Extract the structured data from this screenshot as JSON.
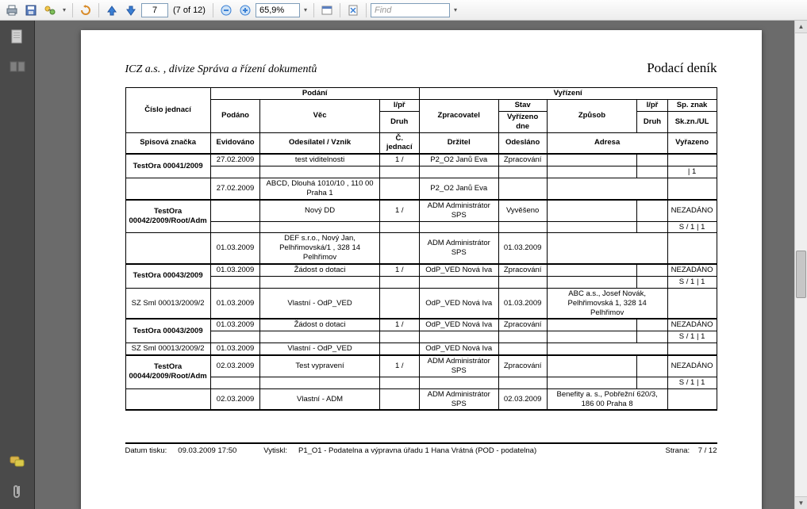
{
  "toolbar": {
    "page_input": "7",
    "page_count": "(7 of 12)",
    "zoom": "65,9%",
    "find_placeholder": "Find"
  },
  "doc": {
    "header_left": "ICZ a.s. , divize Správa a řízení dokumentů",
    "header_right": "Podací deník",
    "group_podani": "Podání",
    "group_vyrizeni": "Vyřízení",
    "h1": {
      "cj": "Číslo jednací",
      "pod": "Podáno",
      "vec": "Věc",
      "lpr": "l/př",
      "zpr": "Zpracovatel",
      "stav": "Stav",
      "zpusob": "Způsob",
      "lpr2": "l/př",
      "sp": "Sp. znak"
    },
    "h2": {
      "druh": "Druh",
      "vyrdne": "Vyřízeno dne",
      "druh2": "Druh",
      "skzn": "Sk.zn./UL"
    },
    "h3": {
      "spisz": "Spisová značka",
      "evid": "Evidováno",
      "odes": "Odesílatel / Vznik",
      "cjed": "Č. jednací",
      "drz": "Držitel",
      "odesl": "Odesláno",
      "adresa": "Adresa",
      "vyraz": "Vyřazeno"
    },
    "rows": [
      {
        "r1": [
          "TestOra 00041/2009",
          "27.02.2009",
          "test viditelnosti",
          "1 /",
          "P2_O2 Janů Eva",
          "Zpracování",
          "",
          "",
          ""
        ],
        "r2": [
          "",
          "",
          "",
          "",
          "",
          "",
          "",
          "",
          "| 1"
        ],
        "r3": [
          "",
          "27.02.2009",
          "ABCD, Dlouhá 1010/10 , 110 00 Praha 1",
          "",
          "P2_O2 Janů Eva",
          "",
          "",
          "",
          ""
        ]
      },
      {
        "r1": [
          "TestOra 00042/2009/Root/Adm",
          "",
          "Nový DD",
          "1 /",
          "ADM Administrátor SPS",
          "Vyvěšeno",
          "",
          "",
          "NEZADÁNO"
        ],
        "r2": [
          "",
          "",
          "",
          "",
          "",
          "",
          "",
          "",
          "S / 1 | 1"
        ],
        "r3": [
          "",
          "01.03.2009",
          "DEF s.r.o., Nový Jan, Pelhřimovská/1 , 328 14 Pelhřimov",
          "",
          "ADM Administrátor SPS",
          "01.03.2009",
          "",
          "",
          ""
        ]
      },
      {
        "r1": [
          "TestOra 00043/2009",
          "01.03.2009",
          "Žádost o dotaci",
          "1 /",
          "OdP_VED Nová Iva",
          "Zpracování",
          "",
          "",
          "NEZADÁNO"
        ],
        "r2": [
          "",
          "",
          "",
          "",
          "",
          "",
          "",
          "",
          "S / 1 | 1"
        ],
        "r3": [
          "SZ Sml 00013/2009/2",
          "01.03.2009",
          "Vlastní - OdP_VED",
          "",
          "OdP_VED Nová Iva",
          "01.03.2009",
          "ABC a.s., Josef Novák, Pelhřimovská 1, 328 14 Pelhřimov",
          "",
          ""
        ]
      },
      {
        "r1": [
          "TestOra 00043/2009",
          "01.03.2009",
          "Žádost o dotaci",
          "1 /",
          "OdP_VED Nová Iva",
          "Zpracování",
          "",
          "",
          "NEZADÁNO"
        ],
        "r2": [
          "",
          "",
          "",
          "",
          "",
          "",
          "",
          "",
          "S / 1 | 1"
        ],
        "r3": [
          "SZ Sml 00013/2009/2",
          "01.03.2009",
          "Vlastní - OdP_VED",
          "",
          "OdP_VED Nová Iva",
          "",
          "",
          "",
          ""
        ]
      },
      {
        "r1": [
          "TestOra 00044/2009/Root/Adm",
          "02.03.2009",
          "Test vypravení",
          "1 /",
          "ADM Administrátor SPS",
          "Zpracování",
          "",
          "",
          "NEZADÁNO"
        ],
        "r2": [
          "",
          "",
          "",
          "",
          "",
          "",
          "",
          "",
          "S / 1 | 1"
        ],
        "r3": [
          "",
          "02.03.2009",
          "Vlastní - ADM",
          "",
          "ADM Administrátor SPS",
          "02.03.2009",
          "Benefity a. s., Pobřežní 620/3, 186 00 Praha 8",
          "",
          ""
        ]
      }
    ],
    "footer": {
      "lblDatum": "Datum tisku:",
      "datum": "09.03.2009 17:50",
      "lblVytiskl": "Vytiskl:",
      "vytiskl": "P1_O1 - Podatelna a výpravna úřadu 1 Hana Vrátná (POD - podatelna)",
      "lblStrana": "Strana:",
      "strana": "7 / 12"
    }
  },
  "colors": {
    "toolbar_bg": "#ececec",
    "sidebar_bg": "#4a4a4a",
    "viewer_bg": "#6b6b6b"
  }
}
